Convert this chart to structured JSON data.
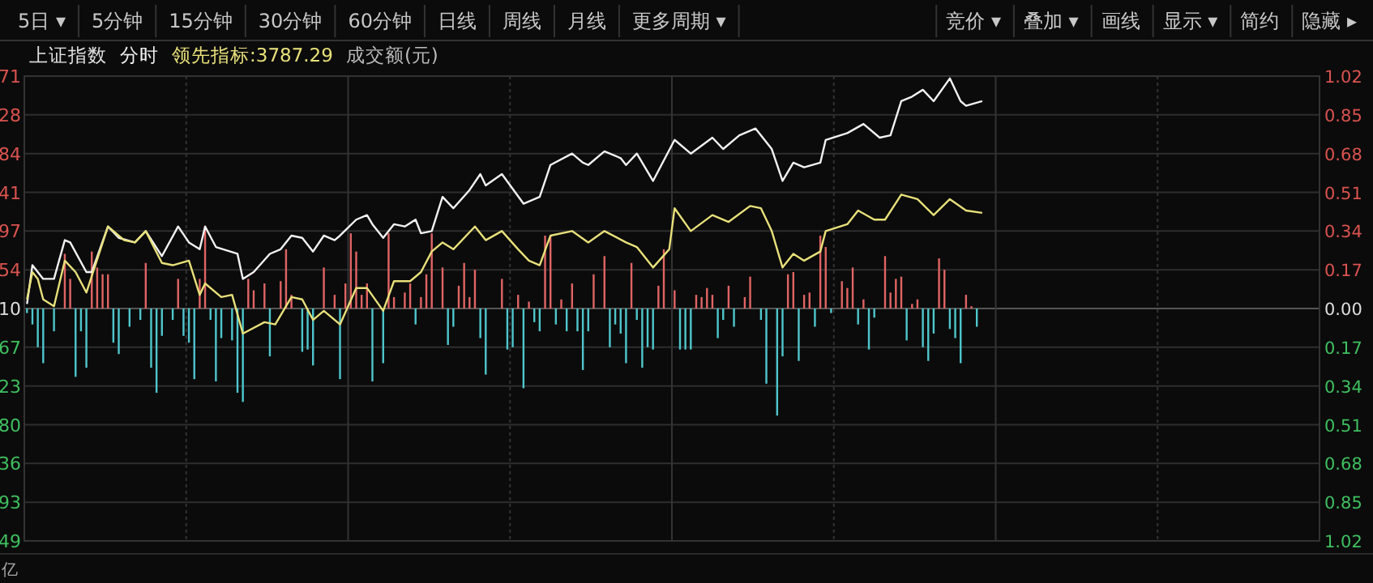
{
  "chart_data": {
    "type": "line",
    "title": "上证指数",
    "legend": "top left",
    "grid": true,
    "annotations": [
      "5日 ▾",
      "5分钟",
      "15分钟",
      "30分钟",
      "60分钟",
      "日线",
      "周线",
      "月线",
      "更多周期 ▾",
      "竞价 ▾",
      "叠加 ▾",
      "画线",
      "显示 ▾",
      "简约",
      "隐藏 ▸",
      "成交额(元)",
      "亿",
      "71",
      "28",
      "84",
      "41",
      "97",
      "54",
      "10",
      "67",
      "23",
      "80",
      "36",
      "93",
      "49"
    ],
    "categories": [
      null,
      null,
      null,
      null,
      null,
      null,
      null,
      null,
      null,
      null,
      null,
      null,
      null,
      null,
      null,
      null,
      null,
      null,
      null,
      null,
      null,
      null,
      null,
      null,
      null,
      null,
      null,
      null,
      null,
      null,
      null,
      null,
      null,
      null,
      null,
      null,
      null,
      null,
      null,
      null,
      null,
      null,
      null,
      null,
      null,
      null,
      null,
      null,
      null,
      null,
      null,
      null,
      null,
      null,
      null,
      null,
      null,
      null,
      null,
      null,
      null,
      null,
      null,
      null,
      null,
      null,
      null,
      null,
      null,
      null,
      null,
      null,
      null,
      null,
      null,
      null,
      null,
      null,
      null,
      null,
      null,
      null,
      null,
      null,
      null,
      null,
      null,
      null,
      null,
      null,
      null,
      null,
      null,
      null,
      null,
      null,
      null,
      null,
      null,
      null,
      null,
      null,
      null,
      null,
      null,
      null,
      null,
      null,
      null,
      null,
      null,
      null,
      null,
      null,
      null,
      null,
      null,
      null,
      null,
      null,
      null,
      null,
      null,
      null,
      null,
      null,
      null,
      null,
      null,
      null,
      null,
      null,
      null,
      null,
      null,
      null,
      null,
      null,
      null,
      null,
      null,
      null,
      null,
      null,
      null,
      null,
      null,
      null,
      null,
      null,
      null,
      null,
      null,
      null,
      null,
      null,
      null,
      null,
      null,
      null,
      null,
      null,
      null,
      null,
      null,
      null,
      null,
      null,
      null,
      null,
      null,
      null,
      null,
      null,
      null,
      null,
      null,
      null,
      null,
      null,
      null,
      null,
      null,
      null,
      null,
      null,
      null,
      null,
      null,
      null,
      null,
      null,
      null,
      null,
      null,
      null,
      null,
      null,
      null,
      null,
      null,
      null,
      null,
      null,
      null,
      null,
      null,
      null,
      null,
      null,
      null,
      null,
      null,
      null,
      null,
      null,
      null,
      null,
      null,
      null,
      null,
      null,
      null,
      null,
      null,
      null,
      null,
      null,
      null,
      null,
      null,
      null,
      null,
      null,
      null,
      null,
      null,
      null,
      null,
      null
    ],
    "ylim": [
      -1.02,
      1.02
    ],
    "yticks": [
      1.02,
      0.85,
      0.68,
      0.51,
      0.34,
      0.17,
      {
        "value": 0,
        "label": "0.00"
      },
      {
        "value": -0.17,
        "label": "0.17"
      },
      {
        "value": -0.34,
        "label": "0.34"
      },
      {
        "value": -0.51,
        "label": "0.51"
      },
      {
        "value": -0.68,
        "label": "0.68"
      },
      {
        "value": -0.85,
        "label": "0.85"
      },
      {
        "value": -1.02,
        "label": "1.02"
      }
    ],
    "series": [
      {
        "type": "bar",
        "color": "#e06464",
        "values": [
          null,
          null,
          null,
          null,
          null,
          null,
          null,
          0.24,
          0.13,
          null,
          null,
          null,
          0.25,
          0.18,
          0.15,
          0.15,
          null,
          null,
          null,
          null,
          null,
          null,
          0.2,
          null,
          null,
          null,
          null,
          null,
          0.13,
          null,
          null,
          null,
          0.13,
          0.36,
          null,
          null,
          null,
          null,
          null,
          null,
          null,
          0.13,
          0.08,
          null,
          0.11,
          null,
          null,
          0.12,
          0.26,
          0.06,
          null,
          null,
          null,
          null,
          null,
          0.18,
          null,
          0.06,
          null,
          0.11,
          0.33,
          0.25,
          0.06,
          0.11,
          null,
          null,
          null,
          0.33,
          0.05,
          null,
          0.07,
          0.11,
          null,
          0.05,
          0.15,
          0.33,
          null,
          0.18,
          null,
          null,
          0.1,
          0.2,
          0.05,
          0.17,
          null,
          null,
          null,
          null,
          0.13,
          null,
          null,
          0.06,
          null,
          0.03,
          null,
          null,
          0.32,
          0.32,
          null,
          0.04,
          null,
          0.11,
          null,
          null,
          null,
          0.15,
          null,
          0.23,
          null,
          null,
          null,
          null,
          0.2,
          null,
          null,
          null,
          null,
          0.1,
          0.26,
          null,
          0.08,
          null,
          null,
          null,
          0.06,
          0.05,
          0.09,
          0.06,
          null,
          null,
          0.1,
          null,
          null,
          0.05,
          0.14,
          null,
          null,
          null,
          null,
          null,
          null,
          0.15,
          0.16,
          null,
          0.06,
          0.07,
          null,
          0.32,
          0.27,
          null,
          null,
          0.12,
          0.09,
          0.18,
          null,
          0.04,
          null,
          null,
          null,
          0.23,
          0.07,
          0.13,
          0.14,
          null,
          0.02,
          0.04,
          null,
          null,
          null,
          0.22,
          0.17,
          null,
          null,
          null,
          0.06,
          0.01,
          null,
          null,
          null,
          null,
          null,
          null,
          null,
          null,
          null,
          null,
          null,
          null,
          null,
          null,
          null,
          null,
          null,
          null,
          null,
          null,
          null,
          null,
          null,
          null,
          null,
          null,
          null,
          null,
          null,
          null,
          null,
          null,
          null,
          null,
          null,
          null,
          null,
          null,
          null,
          null,
          null,
          null,
          null,
          null,
          null,
          null,
          null,
          null,
          null,
          null,
          null,
          null,
          null,
          null,
          null,
          null,
          null,
          null,
          null,
          null,
          null,
          null,
          null,
          null
        ]
      },
      {
        "type": "bar",
        "color": "#4fc6cc",
        "values": [
          -0.02,
          -0.07,
          -0.17,
          -0.24,
          null,
          -0.1,
          null,
          null,
          null,
          -0.3,
          -0.1,
          -0.26,
          null,
          null,
          null,
          null,
          -0.15,
          -0.2,
          null,
          -0.08,
          null,
          -0.05,
          null,
          -0.26,
          -0.37,
          -0.12,
          null,
          -0.05,
          null,
          -0.12,
          -0.15,
          -0.31,
          null,
          null,
          -0.05,
          -0.32,
          -0.13,
          null,
          -0.14,
          -0.37,
          -0.41,
          null,
          null,
          null,
          null,
          -0.21,
          null,
          null,
          null,
          null,
          null,
          -0.19,
          -0.18,
          -0.25,
          null,
          null,
          null,
          null,
          -0.31,
          null,
          null,
          null,
          null,
          null,
          -0.32,
          null,
          -0.24,
          null,
          null,
          null,
          null,
          null,
          -0.07,
          null,
          null,
          null,
          null,
          null,
          -0.16,
          -0.08,
          null,
          null,
          null,
          null,
          -0.13,
          -0.29,
          null,
          null,
          null,
          -0.18,
          -0.17,
          null,
          -0.35,
          null,
          -0.06,
          -0.1,
          null,
          null,
          -0.07,
          null,
          -0.1,
          null,
          -0.1,
          -0.27,
          -0.1,
          null,
          null,
          null,
          -0.17,
          -0.07,
          -0.11,
          -0.24,
          null,
          -0.05,
          -0.26,
          -0.17,
          -0.18,
          null,
          null,
          null,
          null,
          -0.18,
          -0.18,
          -0.18,
          null,
          null,
          null,
          null,
          -0.13,
          -0.05,
          null,
          -0.08,
          null,
          null,
          null,
          null,
          -0.05,
          -0.33,
          null,
          -0.47,
          -0.21,
          null,
          null,
          -0.23,
          null,
          null,
          -0.08,
          null,
          null,
          -0.02,
          null,
          null,
          null,
          null,
          -0.07,
          null,
          -0.18,
          -0.04,
          null,
          null,
          null,
          null,
          null,
          -0.14,
          null,
          null,
          -0.17,
          -0.23,
          -0.11,
          null,
          null,
          -0.09,
          -0.13,
          -0.24,
          null,
          null,
          -0.08,
          null,
          null,
          null,
          null,
          null,
          null,
          null,
          null,
          null,
          null,
          null,
          null,
          null,
          null,
          null,
          null,
          null,
          null,
          null,
          null,
          null,
          null,
          null,
          null,
          null,
          null,
          null,
          null,
          null,
          null,
          null,
          null,
          null,
          null,
          null,
          null,
          null,
          null,
          null,
          null,
          null,
          null,
          null,
          null,
          null,
          null,
          null,
          null,
          null,
          null,
          null,
          null,
          null,
          null,
          null,
          null,
          null,
          null,
          null,
          null,
          null,
          null,
          null
        ]
      },
      {
        "name": "分时",
        "color": "#f2f2f2",
        "values": [
          0.02,
          0.19,
          null,
          0.13,
          null,
          0.13,
          null,
          0.3,
          0.29,
          null,
          null,
          0.16,
          0.16,
          null,
          null,
          0.36,
          null,
          0.31,
          null,
          null,
          0.29,
          null,
          0.34,
          null,
          null,
          0.23,
          null,
          null,
          0.36,
          null,
          0.29,
          null,
          0.26,
          0.36,
          null,
          0.27,
          null,
          null,
          null,
          0.24,
          0.13,
          null,
          0.16,
          null,
          null,
          0.24,
          null,
          0.26,
          null,
          0.32,
          null,
          0.31,
          null,
          0.25,
          null,
          0.32,
          null,
          0.3,
          0.32,
          null,
          null,
          0.39,
          null,
          0.41,
          0.37,
          null,
          0.31,
          null,
          0.37,
          null,
          0.36,
          null,
          0.39,
          0.33,
          null,
          0.34,
          null,
          0.49,
          null,
          0.44,
          null,
          null,
          0.52,
          null,
          0.59,
          0.54,
          null,
          null,
          0.59,
          null,
          null,
          null,
          0.46,
          null,
          null,
          0.49,
          null,
          0.63,
          null,
          null,
          null,
          0.68,
          null,
          0.64,
          0.63,
          null,
          null,
          0.69,
          null,
          null,
          0.66,
          0.63,
          null,
          0.68,
          null,
          null,
          0.56,
          null,
          null,
          null,
          0.74,
          null,
          null,
          0.68,
          null,
          null,
          null,
          0.75,
          null,
          0.7,
          null,
          null,
          0.76,
          null,
          null,
          0.79,
          null,
          null,
          0.7,
          null,
          0.56,
          null,
          0.64,
          null,
          0.62,
          null,
          null,
          0.64,
          0.74,
          null,
          null,
          null,
          0.77,
          null,
          null,
          0.81,
          null,
          null,
          0.75,
          null,
          0.76,
          null,
          0.91,
          null,
          0.93,
          null,
          0.96,
          null,
          0.91,
          null,
          null,
          1.01,
          null,
          0.91,
          0.89,
          null,
          null,
          0.91,
          null,
          null,
          null,
          null,
          null,
          null,
          null,
          null,
          null,
          null,
          null,
          null,
          null,
          null,
          null,
          null,
          null,
          null,
          null,
          null,
          null,
          null,
          null,
          null,
          null,
          null,
          null,
          null,
          null,
          null,
          null,
          null,
          null,
          null,
          null,
          null,
          null,
          null,
          null,
          null,
          null,
          null,
          null,
          null,
          null,
          null,
          null,
          null,
          null,
          null,
          null,
          null,
          null,
          null,
          null,
          null,
          null,
          null,
          null,
          null,
          null,
          null
        ]
      },
      {
        "name": "领先指标:3787.29",
        "color": "#e8e07a",
        "values": [
          0.04,
          0.16,
          0.13,
          0.04,
          null,
          0.01,
          null,
          0.21,
          null,
          0.16,
          null,
          0.07,
          null,
          null,
          null,
          0.36,
          null,
          null,
          0.3,
          null,
          0.29,
          null,
          0.34,
          null,
          null,
          0.2,
          null,
          0.19,
          null,
          null,
          0.21,
          null,
          0.06,
          0.11,
          null,
          null,
          0.05,
          null,
          0.06,
          null,
          -0.11,
          null,
          null,
          null,
          -0.06,
          null,
          -0.07,
          null,
          null,
          0.05,
          null,
          0.04,
          null,
          -0.05,
          null,
          -0.01,
          null,
          null,
          -0.07,
          null,
          null,
          0.09,
          null,
          0.09,
          null,
          null,
          -0.01,
          null,
          0.12,
          null,
          null,
          0.12,
          null,
          0.16,
          null,
          0.25,
          null,
          0.29,
          null,
          0.26,
          null,
          null,
          null,
          0.36,
          null,
          0.3,
          null,
          null,
          0.34,
          null,
          null,
          0.26,
          null,
          0.21,
          null,
          0.19,
          null,
          0.32,
          null,
          null,
          null,
          0.34,
          null,
          null,
          0.29,
          null,
          null,
          0.34,
          null,
          null,
          null,
          0.29,
          null,
          0.27,
          null,
          null,
          0.18,
          null,
          null,
          0.26,
          0.44,
          null,
          null,
          0.34,
          null,
          null,
          null,
          0.41,
          null,
          null,
          0.38,
          null,
          null,
          null,
          0.45,
          null,
          0.44,
          null,
          0.34,
          null,
          0.18,
          null,
          0.24,
          null,
          0.21,
          null,
          null,
          0.25,
          0.34,
          null,
          null,
          null,
          0.37,
          null,
          0.43,
          null,
          null,
          0.39,
          null,
          0.39,
          null,
          null,
          0.5,
          null,
          null,
          0.48,
          null,
          null,
          0.41,
          null,
          null,
          0.48,
          null,
          null,
          0.43,
          null,
          null,
          0.42,
          null,
          null,
          null,
          null,
          null,
          null,
          null,
          null,
          null,
          null,
          null,
          null,
          null,
          null,
          null,
          null,
          null,
          null,
          null,
          null,
          null,
          null,
          null,
          null,
          null,
          null,
          null,
          null,
          null,
          null,
          null,
          null,
          null,
          null,
          null,
          null,
          null,
          null,
          null,
          null,
          null,
          null,
          null,
          null,
          null,
          null,
          null,
          null,
          null,
          null,
          null,
          null,
          null,
          null,
          null,
          null,
          null,
          null,
          null,
          null,
          null,
          null
        ]
      }
    ]
  }
}
